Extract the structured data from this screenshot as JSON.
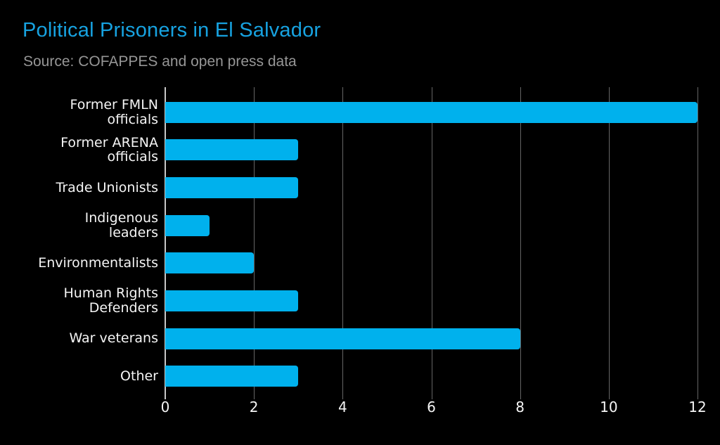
{
  "chart_data": {
    "type": "bar",
    "orientation": "horizontal",
    "title": "Political Prisoners in El Salvador",
    "subtitle": "Source: COFAPPES and open press data",
    "categories": [
      "Former FMLN officials",
      "Former ARENA officials",
      "Trade Unionists",
      "Indigenous leaders",
      "Environmentalists",
      "Human Rights Defenders",
      "War veterans",
      "Other"
    ],
    "category_label_lines": [
      [
        "Former FMLN",
        "officials"
      ],
      [
        "Former ARENA",
        "officials"
      ],
      [
        "Trade Unionists"
      ],
      [
        "Indigenous",
        "leaders"
      ],
      [
        "Environmentalists"
      ],
      [
        "Human Rights",
        "Defenders"
      ],
      [
        "War veterans"
      ],
      [
        "Other"
      ]
    ],
    "values": [
      12,
      3,
      3,
      1,
      2,
      3,
      8,
      3
    ],
    "x_ticks": [
      0,
      2,
      4,
      6,
      8,
      10,
      12
    ],
    "xlim": [
      0,
      12
    ],
    "xlabel": "",
    "ylabel": "",
    "grid": "vertical-gridlines",
    "legend": "none",
    "colors": {
      "background": "#000000",
      "bar": "#00b1ed",
      "title": "#17a2e0",
      "subtitle": "#969696",
      "label": "#f5f5f5",
      "tick_label": "#f5f5f5",
      "gridline": "#666666",
      "axis_line": "#c8c8c8"
    }
  }
}
